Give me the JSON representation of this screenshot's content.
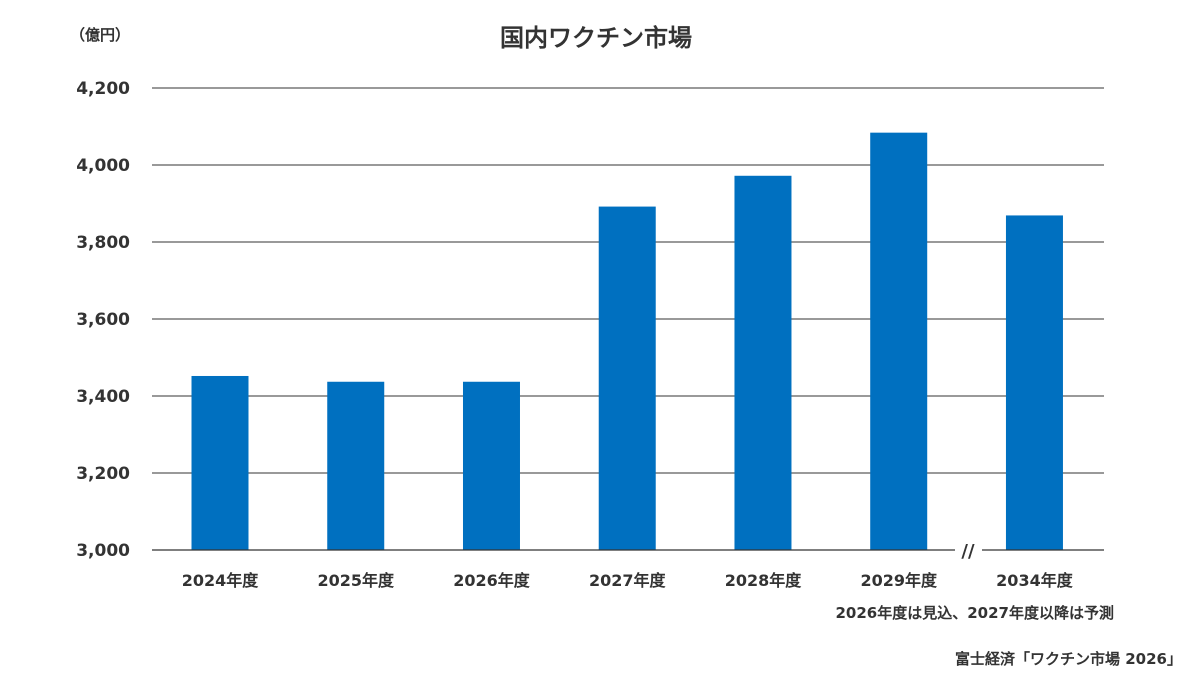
{
  "chart_data": {
    "type": "bar",
    "title": "国内ワクチン市場",
    "unit_label": "（億円）",
    "categories": [
      "2024年度",
      "2025年度",
      "2026年度",
      "2027年度",
      "2028年度",
      "2029年度",
      "2034年度"
    ],
    "series": [
      {
        "values": [
          3452,
          3437,
          3437,
          3892,
          3972,
          4084,
          3869
        ]
      }
    ],
    "ylim": [
      3000,
      4200
    ],
    "yticks": [
      3000,
      3200,
      3400,
      3600,
      3800,
      4000,
      4200
    ],
    "ytick_labels": [
      "3,000",
      "3,200",
      "3,400",
      "3,600",
      "3,800",
      "4,000",
      "4,200"
    ],
    "grid": true,
    "axis_break_symbol": "//",
    "bar_color": "#0070C0",
    "note": "2026年度は見込、2027年度以降は予測",
    "source": "富士経済「ワクチン市場 2026」"
  }
}
